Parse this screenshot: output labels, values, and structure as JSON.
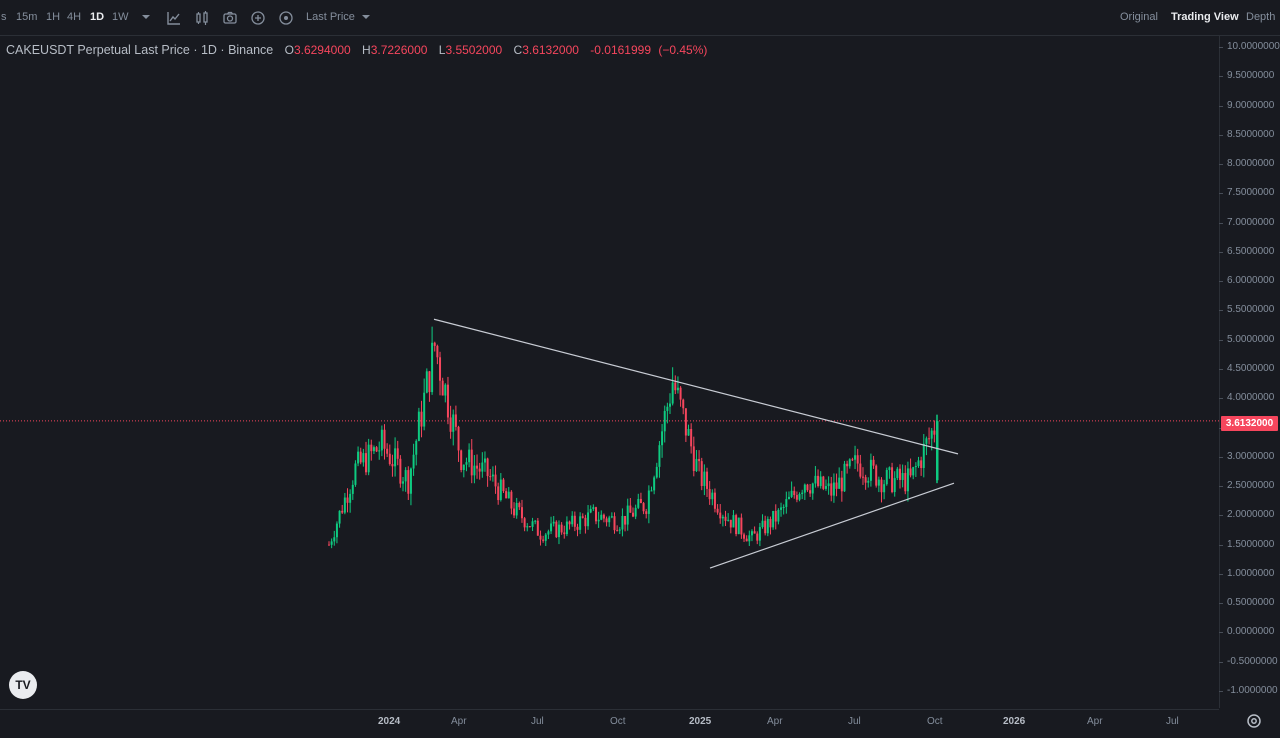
{
  "toolbar": {
    "intervals": [
      {
        "label": "s",
        "active": false
      },
      {
        "label": "15m",
        "active": false
      },
      {
        "label": "1H",
        "active": false
      },
      {
        "label": "4H",
        "active": false
      },
      {
        "label": "1D",
        "active": true
      },
      {
        "label": "1W",
        "active": false
      }
    ],
    "price_type": "Last Price",
    "views": [
      {
        "label": "Original",
        "active": false
      },
      {
        "label": "Trading View",
        "active": true
      },
      {
        "label": "Depth",
        "active": false
      }
    ]
  },
  "legend": {
    "symbol": "CAKEUSDT Perpetual Last Price · 1D · Binance",
    "open_label": "O",
    "open": "3.6294000",
    "high_label": "H",
    "high": "3.7226000",
    "low_label": "L",
    "low": "3.5502000",
    "close_label": "C",
    "close": "3.6132000",
    "change": "-0.0161999",
    "change_pct": "(−0.45%)"
  },
  "price_axis": {
    "ticks": [
      "10.0000000",
      "9.5000000",
      "9.0000000",
      "8.5000000",
      "8.0000000",
      "7.5000000",
      "7.0000000",
      "6.5000000",
      "6.0000000",
      "5.5000000",
      "5.0000000",
      "4.5000000",
      "4.0000000",
      "3.5000000",
      "3.0000000",
      "2.5000000",
      "2.0000000",
      "1.5000000",
      "1.0000000",
      "0.5000000",
      "0.0000000",
      "-0.5000000",
      "-1.0000000"
    ],
    "current_price": "3.6132000"
  },
  "time_axis": {
    "ticks": [
      {
        "label": "2024",
        "bold": true
      },
      {
        "label": "Apr",
        "bold": false
      },
      {
        "label": "Jul",
        "bold": false
      },
      {
        "label": "Oct",
        "bold": false
      },
      {
        "label": "2025",
        "bold": true
      },
      {
        "label": "Apr",
        "bold": false
      },
      {
        "label": "Jul",
        "bold": false
      },
      {
        "label": "Oct",
        "bold": false
      },
      {
        "label": "2026",
        "bold": true
      },
      {
        "label": "Apr",
        "bold": false
      },
      {
        "label": "Jul",
        "bold": false
      }
    ]
  },
  "logo": "TV",
  "colors": {
    "up": "#0ecb81",
    "down": "#f6465d",
    "background": "#181a20",
    "trendline": "#c8ccd4"
  },
  "chart_data": {
    "type": "candlestick",
    "title": "CAKEUSDT Perpetual Last Price · 1D · Binance",
    "ylim": [
      -1.0,
      10.0
    ],
    "x": [
      "2023-11",
      "2023-12",
      "2024-01",
      "2024-02",
      "2024-03",
      "2024-04",
      "2024-05",
      "2024-06",
      "2024-07",
      "2024-08",
      "2024-09",
      "2024-10",
      "2024-11",
      "2024-12",
      "2025-01",
      "2025-02",
      "2025-03",
      "2025-04",
      "2025-05",
      "2025-06",
      "2025-07",
      "2025-08",
      "2025-09",
      "2025-10"
    ],
    "close": [
      1.5,
      2.8,
      3.2,
      2.6,
      4.9,
      3.0,
      2.7,
      2.1,
      1.7,
      1.8,
      2.0,
      1.9,
      2.2,
      4.3,
      2.7,
      2.0,
      1.6,
      2.0,
      2.6,
      2.4,
      2.9,
      2.6,
      2.6,
      3.61
    ],
    "trendlines": [
      {
        "name": "upper",
        "from": {
          "x": "2024-03",
          "y": 5.35
        },
        "to": {
          "x": "2025-10",
          "y": 3.05
        }
      },
      {
        "name": "lower",
        "from": {
          "x": "2025-01",
          "y": 1.1
        },
        "to": {
          "x": "2025-10",
          "y": 2.55
        }
      }
    ],
    "last_price": 3.6132
  }
}
